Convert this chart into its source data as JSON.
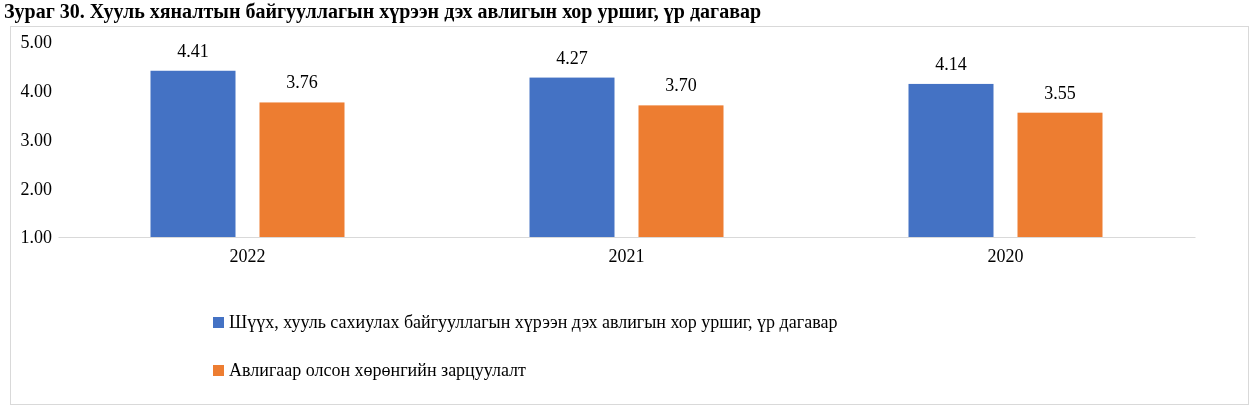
{
  "chart_data": {
    "type": "bar",
    "title": "Зураг 30. Хууль хяналтын байгууллагын хүрээн дэх авлигын хор уршиг, үр дагавар",
    "categories": [
      "2022",
      "2021",
      "2020"
    ],
    "series": [
      {
        "name": "Шүүх, хууль сахиулах байгууллагын хүрээн дэх авлигын хор уршиг, үр дагавар",
        "color": "#4472c4",
        "values": [
          4.41,
          4.27,
          4.14
        ]
      },
      {
        "name": "Авлигаар олсон хөрөнгийн зарцуулалт",
        "color": "#ed7d31",
        "values": [
          3.76,
          3.7,
          3.55
        ]
      }
    ],
    "ylim": [
      1,
      5
    ],
    "yticks": [
      {
        "value": 1,
        "label": "1.00"
      },
      {
        "value": 2,
        "label": "2.00"
      },
      {
        "value": 3,
        "label": "3.00"
      },
      {
        "value": 4,
        "label": "4.00"
      },
      {
        "value": 5,
        "label": "5.00"
      }
    ],
    "value_labels": [
      [
        "4.41",
        "4.27",
        "4.14"
      ],
      [
        "3.76",
        "3.70",
        "3.55"
      ]
    ],
    "grid": false,
    "legend": "bottom"
  }
}
